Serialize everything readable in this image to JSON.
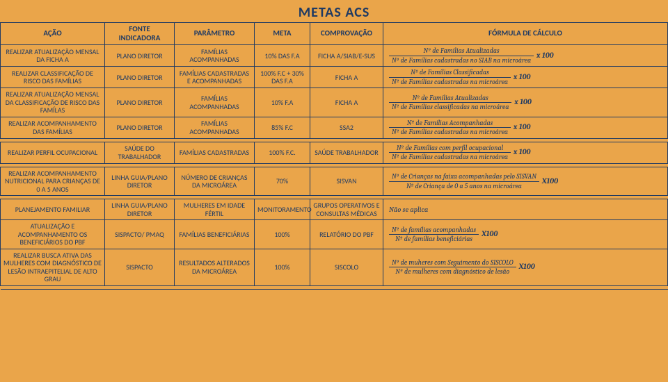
{
  "title": "METAS  ACS",
  "headers": {
    "acao": "AÇÃO",
    "fonte": "FONTE INDICADORA",
    "parametro": "PARÂMETRO",
    "meta": "META",
    "comprovacao": "COMPROVAÇÃO",
    "formula": "FÓRMULA DE CÁLCULO"
  },
  "rows": [
    {
      "acao": "REALIZAR ATUALIZAÇÃO MENSAL DA FICHA A",
      "fonte": "PLANO DIRETOR",
      "parametro": "FAMÍLIAS ACOMPANHADAS",
      "meta": "10% DAS F.A",
      "comp": "FICHA A/SIAB/E-SUS",
      "num": "Nº de Famílias Atualizadas",
      "den": "Nº de Famílias cadastradas no SIAB na microárea",
      "mult": "x 100"
    },
    {
      "acao": "REALIZAR CLASSIFICAÇÃO DE RISCO DAS FAMÍLIAS",
      "fonte": "PLANO DIRETOR",
      "parametro": "FAMÍLIAS CADASTRADAS E ACOMPANHADAS",
      "meta": "100% F.C + 30% DAS F.A",
      "comp": "FICHA A",
      "num": "Nº de Famílias Classificadas",
      "den": "Nº de Famílias cadastradas na microárea",
      "mult": "x 100"
    },
    {
      "acao": "REALIZAR ATUALIZAÇÃO MENSAL DA CLASSIFICAÇÃO DE RISCO DAS FAMÍLAS",
      "fonte": "PLANO DIRETOR",
      "parametro": "FAMÍLIAS ACOMPANHADAS",
      "meta": "10% F.A",
      "comp": "FICHA A",
      "num": "Nº de Famílias Atualizadas",
      "den": "Nº de Famílias classificadas na microárea",
      "mult": "x 100"
    },
    {
      "acao": "REALIZAR ACOMPANHAMENTO DAS FAMÍLIAS",
      "fonte": "PLANO DIRETOR",
      "parametro": "FAMÍLIAS ACOMPANHADAS",
      "meta": "85% F.C",
      "comp": "SSA2",
      "num": "Nº de Famílias Acompanhadas",
      "den": "Nº de Famílias cadastradas na microárea",
      "mult": "x 100"
    },
    {
      "acao": "REALIZAR PERFIL OCUPACIONAL",
      "fonte": "SAÚDE DO TRABALHADOR",
      "parametro": "FAMÍLIAS CADASTRADAS",
      "meta": "100% F.C.",
      "comp": "SAÚDE TRABALHADOR",
      "num": "Nº de Famílias com perfil ocupacional",
      "den": "Nº de Famílias cadastradas na microárea",
      "mult": "x 100"
    },
    {
      "acao": "REALIZAR ACOMPANHAMENTO NUTRICIONAL PARA CRIANÇAS DE 0 A 5 ANOS",
      "fonte": "LINHA GUIA/PLANO DIRETOR",
      "parametro": "NÚMERO DE CRIANÇAS DA MICROÁREA",
      "meta": "70%",
      "comp": "SISVAN",
      "num": "Nº de Crianças na faixa acompanhadas pelo SISVAN",
      "den": "Nº de Criança de 0 a 5 anos na microárea",
      "mult": "X100"
    },
    {
      "acao": "PLANEJAMENTO FAMILIAR",
      "fonte": "LINHA GUIA/PLANO DIRETOR",
      "parametro": "MULHERES EM IDADE FÉRTIL",
      "meta": "MONITORAMENTO",
      "comp": "GRUPOS OPERATIVOS E CONSULTAS MÉDICAS",
      "plain": "Não se aplica"
    },
    {
      "acao": "ATUALIZAÇÃO E ACOMPANHAMENTO OS BENEFICIÁRIOS DO PBF",
      "fonte": "SISPACTO/ PMAQ",
      "parametro": "FAMÍLIAS BENEFICIÁRIAS",
      "meta": "100%",
      "comp": "RELATÓRIO DO PBF",
      "num": "Nº de famílias acompanhadas",
      "den": "Nº de famílias beneficiárias",
      "mult": "X100"
    },
    {
      "acao": "REALIZAR BUSCA ATIVA DAS MULHERES COM DIAGNÓSTICO DE LESÃO INTRAEPITELIAL DE ALTO GRAU",
      "fonte": "SISPACTO",
      "parametro": "RESULTADOS ALTERADOS DA MICROÁREA",
      "meta": "100%",
      "comp": "SISCOLO",
      "num": "Nº de muheres com Seguimento do SISCOLO",
      "den": "Nº de mulheres com diagnóstico de lesão",
      "mult": "X100"
    }
  ],
  "separators_after": [
    3,
    4,
    5,
    8
  ],
  "colors": {
    "background": "#eaa54a",
    "text": "#1f3a63",
    "border": "#1f3a63"
  }
}
